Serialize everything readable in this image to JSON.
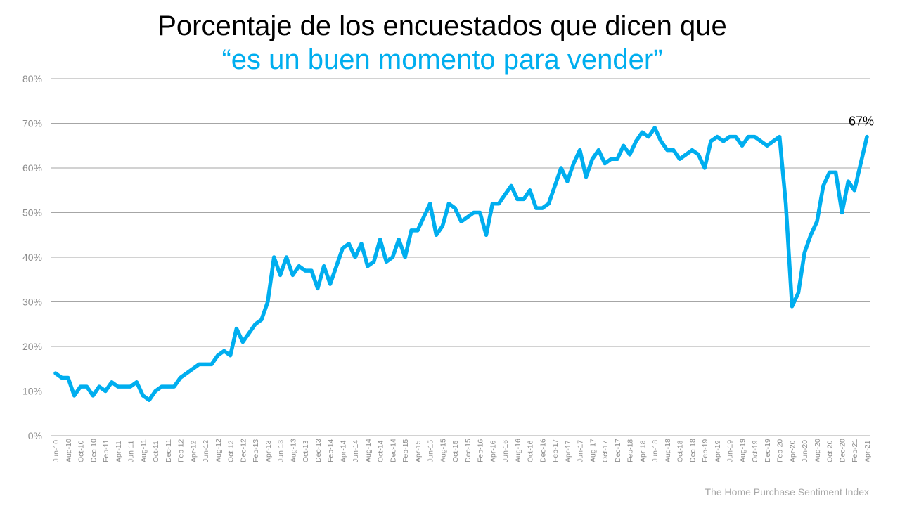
{
  "chart_data": {
    "type": "line",
    "title": "Porcentaje de los encuestados que dicen que",
    "subtitle": "“es un buen momento para vender”",
    "source": "The Home Purchase Sentiment Index",
    "end_label": "67%",
    "line_color": "#00AEEF",
    "grid": true,
    "ylim": [
      0,
      80
    ],
    "yticks": [
      "0%",
      "10%",
      "20%",
      "30%",
      "40%",
      "50%",
      "60%",
      "70%",
      "80%"
    ],
    "categories": [
      "Jun-10",
      "Jul-10",
      "Aug-10",
      "Sep-10",
      "Oct-10",
      "Nov-10",
      "Dec-10",
      "Jan-11",
      "Feb-11",
      "Mar-11",
      "Apr-11",
      "May-11",
      "Jun-11",
      "Jul-11",
      "Aug-11",
      "Sep-11",
      "Oct-11",
      "Nov-11",
      "Dec-11",
      "Jan-12",
      "Feb-12",
      "Mar-12",
      "Apr-12",
      "May-12",
      "Jun-12",
      "Jul-12",
      "Aug-12",
      "Sep-12",
      "Oct-12",
      "Nov-12",
      "Dec-12",
      "Jan-13",
      "Feb-13",
      "Mar-13",
      "Apr-13",
      "May-13",
      "Jun-13",
      "Jul-13",
      "Aug-13",
      "Sep-13",
      "Oct-13",
      "Nov-13",
      "Dec-13",
      "Jan-14",
      "Feb-14",
      "Mar-14",
      "Apr-14",
      "May-14",
      "Jun-14",
      "Jul-14",
      "Aug-14",
      "Sep-14",
      "Oct-14",
      "Nov-14",
      "Dec-14",
      "Jan-15",
      "Feb-15",
      "Mar-15",
      "Apr-15",
      "May-15",
      "Jun-15",
      "Jul-15",
      "Aug-15",
      "Sep-15",
      "Oct-15",
      "Nov-15",
      "Dec-15",
      "Jan-16",
      "Feb-16",
      "Mar-16",
      "Apr-16",
      "May-16",
      "Jun-16",
      "Jul-16",
      "Aug-16",
      "Sep-16",
      "Oct-16",
      "Nov-16",
      "Dec-16",
      "Jan-17",
      "Feb-17",
      "Mar-17",
      "Apr-17",
      "May-17",
      "Jun-17",
      "Jul-17",
      "Aug-17",
      "Sep-17",
      "Oct-17",
      "Nov-17",
      "Dec-17",
      "Jan-18",
      "Feb-18",
      "Mar-18",
      "Apr-18",
      "May-18",
      "Jun-18",
      "Jul-18",
      "Aug-18",
      "Sep-18",
      "Oct-18",
      "Nov-18",
      "Dec-18",
      "Jan-19",
      "Feb-19",
      "Mar-19",
      "Apr-19",
      "May-19",
      "Jun-19",
      "Jul-19",
      "Aug-19",
      "Sep-19",
      "Oct-19",
      "Nov-19",
      "Dec-19",
      "Jan-20",
      "Feb-20",
      "Mar-20",
      "Apr-20",
      "May-20",
      "Jun-20",
      "Jul-20",
      "Aug-20",
      "Sep-20",
      "Oct-20",
      "Nov-20",
      "Dec-20",
      "Jan-21",
      "Feb-21",
      "Mar-21",
      "Apr-21"
    ],
    "values": [
      14,
      13,
      13,
      9,
      11,
      11,
      9,
      11,
      10,
      12,
      11,
      11,
      11,
      12,
      9,
      8,
      10,
      11,
      11,
      11,
      13,
      14,
      15,
      16,
      16,
      16,
      18,
      19,
      18,
      24,
      21,
      23,
      25,
      26,
      30,
      40,
      36,
      40,
      36,
      38,
      37,
      37,
      33,
      38,
      34,
      38,
      42,
      43,
      40,
      43,
      38,
      39,
      44,
      39,
      40,
      44,
      40,
      46,
      46,
      49,
      52,
      45,
      47,
      52,
      51,
      48,
      49,
      50,
      50,
      45,
      52,
      52,
      54,
      56,
      53,
      53,
      55,
      51,
      51,
      52,
      56,
      60,
      57,
      61,
      64,
      58,
      62,
      64,
      61,
      62,
      62,
      65,
      63,
      66,
      68,
      67,
      69,
      66,
      64,
      64,
      62,
      63,
      64,
      63,
      60,
      66,
      67,
      66,
      67,
      67,
      65,
      67,
      67,
      66,
      65,
      66,
      67,
      52,
      29,
      32,
      41,
      45,
      48,
      56,
      59,
      59,
      50,
      57,
      55,
      61,
      67
    ]
  }
}
